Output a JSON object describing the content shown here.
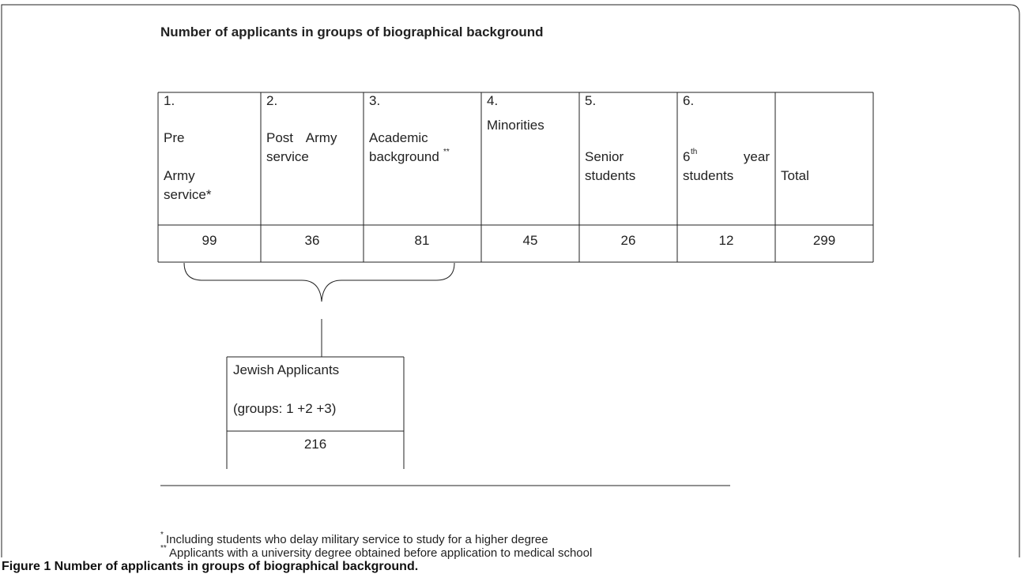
{
  "title": "Number of applicants in groups of biographical background",
  "table": {
    "headers": [
      {
        "number": "1.",
        "lines": [
          "Pre",
          "Army",
          "service*"
        ]
      },
      {
        "number": "2.",
        "lines": [
          "Post Army",
          "service"
        ]
      },
      {
        "number": "3.",
        "lines": [
          "Academic",
          "background"
        ],
        "sup": "**"
      },
      {
        "number": "4.",
        "lines": [
          "Minorities"
        ]
      },
      {
        "number": "5.",
        "lines": [
          "Senior",
          "students"
        ]
      },
      {
        "number": "6.",
        "ordinal": "6",
        "ordinal_suffix": "th",
        "lines": [
          "year",
          "students"
        ]
      },
      {
        "lines": [
          "Total"
        ]
      }
    ],
    "values": [
      99,
      36,
      81,
      45,
      26,
      12,
      299
    ]
  },
  "jewish_box": {
    "title": "Jewish Applicants",
    "subtitle": "(groups: 1 +2 +3)",
    "value": 216
  },
  "footnotes": [
    {
      "mark": "*",
      "text": "Including students who delay military service to study for a higher degree"
    },
    {
      "mark": "**",
      "text": "Applicants with a university degree obtained before application to medical school"
    }
  ],
  "caption": "Figure 1 Number of applicants in groups of biographical background."
}
